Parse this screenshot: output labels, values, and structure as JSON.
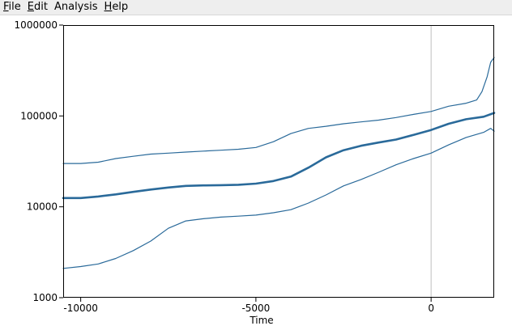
{
  "menubar": {
    "items": [
      {
        "mnemonic": "F",
        "rest": "ile"
      },
      {
        "mnemonic": "E",
        "rest": "dit"
      },
      {
        "mnemonic": "",
        "rest": "Analysis"
      },
      {
        "mnemonic": "H",
        "rest": "elp"
      }
    ]
  },
  "colors": {
    "series": "#2a6a9a",
    "marker_line": "#c0c0c0",
    "frame": "#000000",
    "menubar_bg": "#eeeeee"
  },
  "chart_data": {
    "type": "line",
    "xlabel": "Time",
    "ylabel": "",
    "title": "",
    "y_scale": "log",
    "xlim": [
      -10500,
      1800
    ],
    "ylim": [
      1000,
      1000000
    ],
    "x_ticks": [
      -10000,
      -5000,
      0
    ],
    "x_tick_labels": [
      "-10000",
      "-5000",
      "0"
    ],
    "y_ticks": [
      1000,
      10000,
      100000,
      1000000
    ],
    "y_tick_labels": [
      "1000",
      "10000",
      "100000",
      "1000000"
    ],
    "vertical_marker_x": 0,
    "grid": false,
    "series": [
      {
        "style": "thin",
        "points": [
          [
            -10500,
            30000
          ],
          [
            -10000,
            30000
          ],
          [
            -9500,
            31000
          ],
          [
            -9000,
            34000
          ],
          [
            -8500,
            36000
          ],
          [
            -8000,
            38000
          ],
          [
            -7500,
            39000
          ],
          [
            -7000,
            40000
          ],
          [
            -6500,
            41000
          ],
          [
            -6000,
            42000
          ],
          [
            -5500,
            43000
          ],
          [
            -5000,
            45000
          ],
          [
            -4500,
            52000
          ],
          [
            -4000,
            64000
          ],
          [
            -3500,
            73000
          ],
          [
            -3000,
            77000
          ],
          [
            -2500,
            82000
          ],
          [
            -2000,
            86000
          ],
          [
            -1500,
            90000
          ],
          [
            -1000,
            96000
          ],
          [
            -500,
            104000
          ],
          [
            0,
            112000
          ],
          [
            500,
            128000
          ],
          [
            1000,
            138000
          ],
          [
            1300,
            150000
          ],
          [
            1450,
            185000
          ],
          [
            1600,
            270000
          ],
          [
            1700,
            390000
          ],
          [
            1800,
            440000
          ]
        ]
      },
      {
        "style": "bold",
        "points": [
          [
            -10500,
            12500
          ],
          [
            -10000,
            12500
          ],
          [
            -9500,
            13000
          ],
          [
            -9000,
            13700
          ],
          [
            -8500,
            14600
          ],
          [
            -8000,
            15500
          ],
          [
            -7500,
            16300
          ],
          [
            -7000,
            17000
          ],
          [
            -6500,
            17200
          ],
          [
            -6000,
            17300
          ],
          [
            -5500,
            17500
          ],
          [
            -5000,
            18000
          ],
          [
            -4500,
            19200
          ],
          [
            -4000,
            21500
          ],
          [
            -3500,
            27000
          ],
          [
            -3000,
            35000
          ],
          [
            -2500,
            42000
          ],
          [
            -2000,
            47000
          ],
          [
            -1500,
            51000
          ],
          [
            -1000,
            55000
          ],
          [
            -500,
            62000
          ],
          [
            0,
            70000
          ],
          [
            500,
            82000
          ],
          [
            1000,
            92000
          ],
          [
            1500,
            98000
          ],
          [
            1800,
            108000
          ]
        ]
      },
      {
        "style": "thin",
        "points": [
          [
            -10500,
            2100
          ],
          [
            -10000,
            2200
          ],
          [
            -9500,
            2350
          ],
          [
            -9000,
            2700
          ],
          [
            -8500,
            3300
          ],
          [
            -8000,
            4200
          ],
          [
            -7500,
            5800
          ],
          [
            -7000,
            7000
          ],
          [
            -6500,
            7400
          ],
          [
            -6000,
            7700
          ],
          [
            -5500,
            7900
          ],
          [
            -5000,
            8100
          ],
          [
            -4500,
            8600
          ],
          [
            -4000,
            9300
          ],
          [
            -3500,
            11000
          ],
          [
            -3000,
            13500
          ],
          [
            -2500,
            17000
          ],
          [
            -2000,
            20000
          ],
          [
            -1500,
            24000
          ],
          [
            -1000,
            29000
          ],
          [
            -500,
            34000
          ],
          [
            0,
            39000
          ],
          [
            500,
            48000
          ],
          [
            1000,
            58000
          ],
          [
            1500,
            66000
          ],
          [
            1700,
            73000
          ],
          [
            1800,
            68000
          ]
        ]
      }
    ]
  }
}
